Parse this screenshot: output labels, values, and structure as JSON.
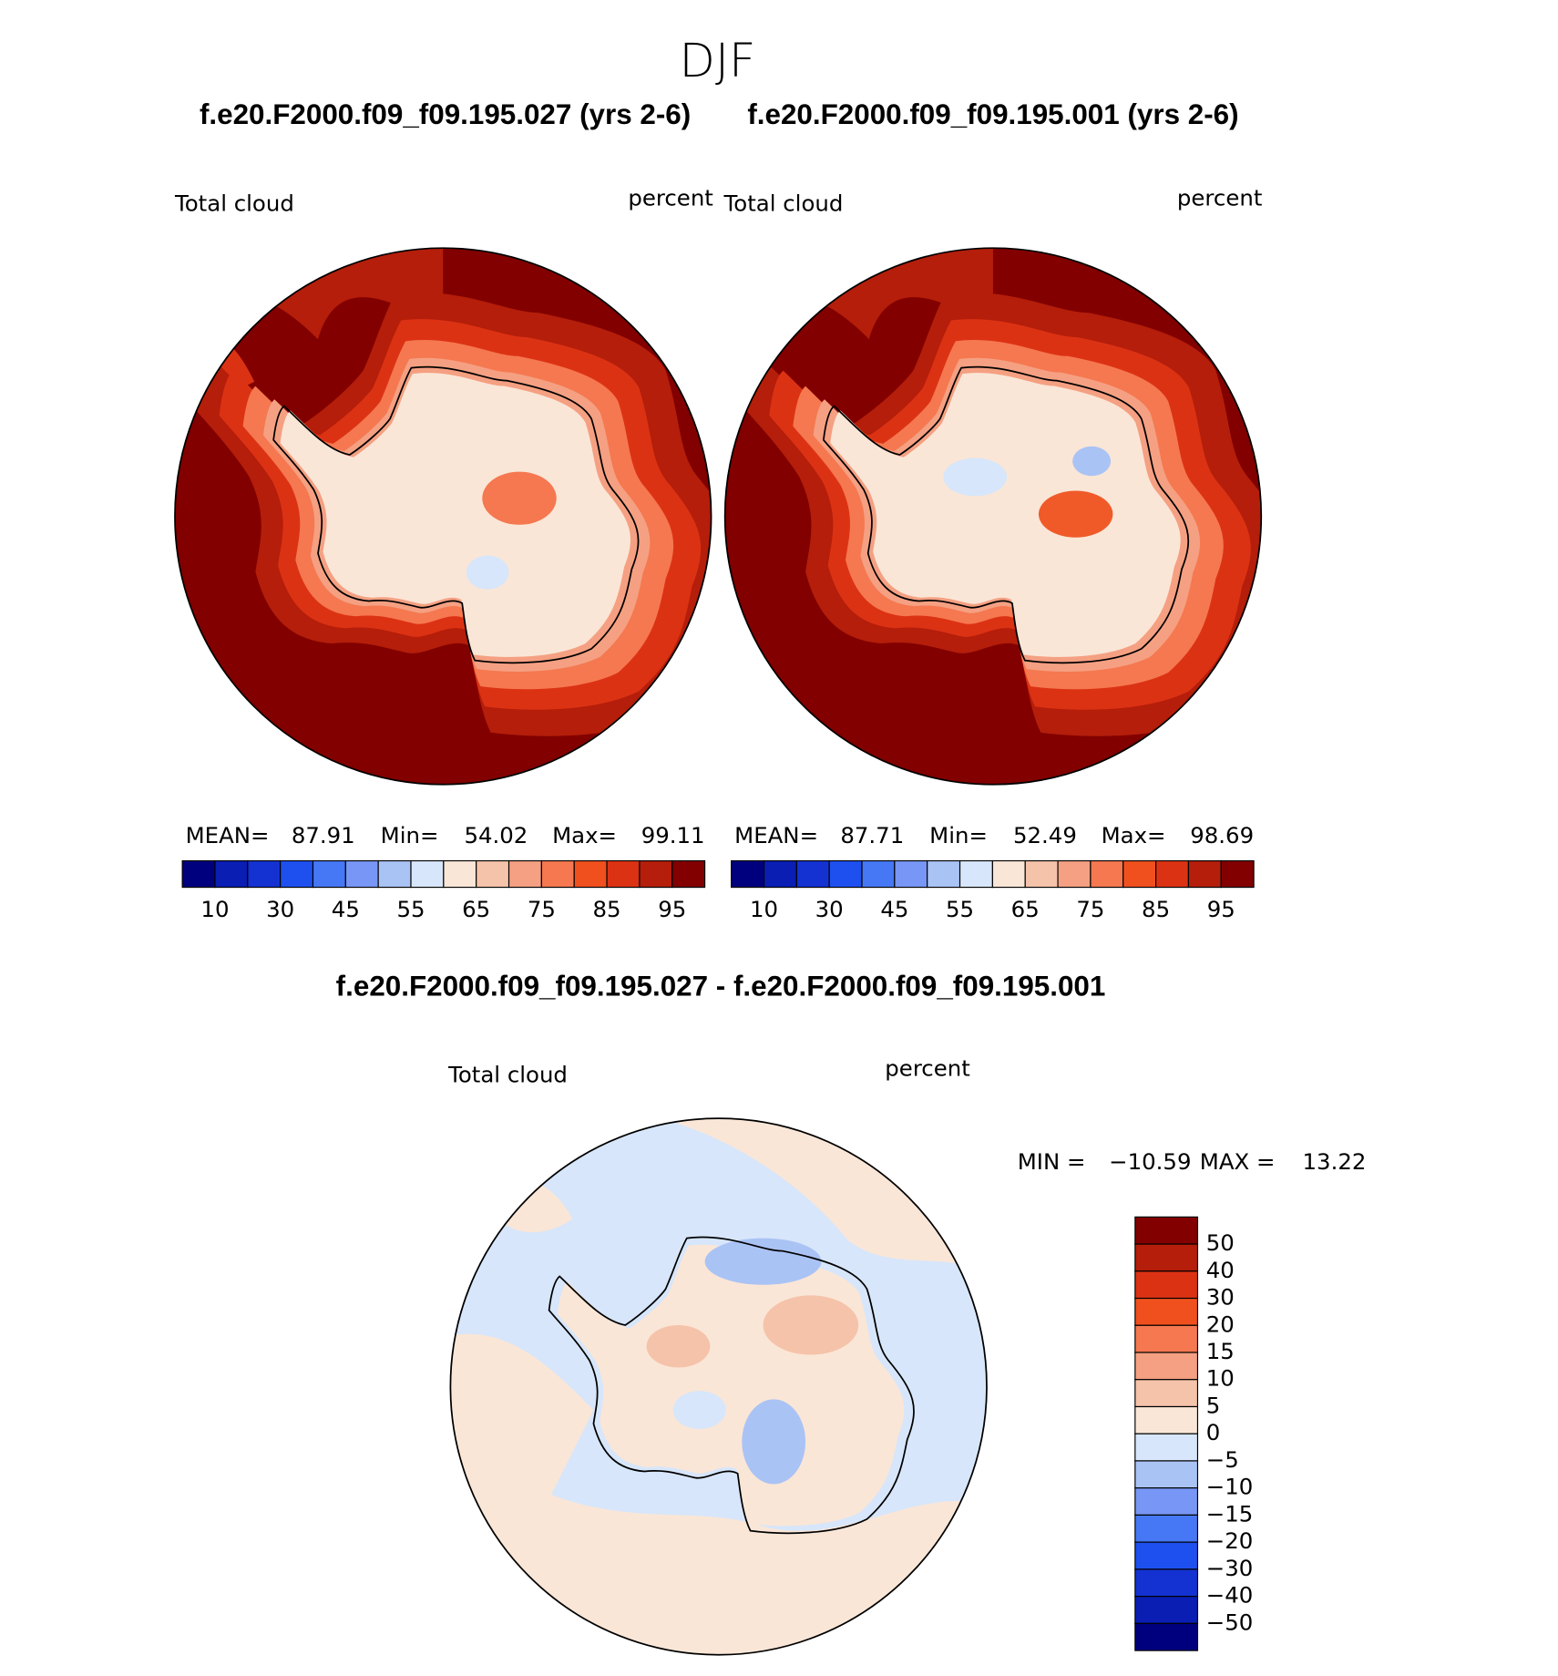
{
  "title": "DJF",
  "top_panels": [
    {
      "case": "f.e20.F2000.f09_f09.195.027 (yrs 2-6)",
      "variable": "Total cloud",
      "units": "percent",
      "stats": [
        {
          "label": "MEAN=",
          "value": "87.91"
        },
        {
          "label": "Min=",
          "value": "54.02"
        },
        {
          "label": "Max=",
          "value": "99.11"
        }
      ]
    },
    {
      "case": "f.e20.F2000.f09_f09.195.001 (yrs 2-6)",
      "variable": "Total cloud",
      "units": "percent",
      "stats": [
        {
          "label": "MEAN=",
          "value": "87.71"
        },
        {
          "label": "Min=",
          "value": "52.49"
        },
        {
          "label": "Max=",
          "value": "98.69"
        }
      ]
    }
  ],
  "top_colorbar": {
    "colors": [
      "#00007f",
      "#0a1eb4",
      "#1432d2",
      "#1e50f0",
      "#4678f5",
      "#7896f5",
      "#aac3f5",
      "#d7e6fa",
      "#fae6d7",
      "#f5c3aa",
      "#f5a082",
      "#f57850",
      "#f0501e",
      "#dc3214",
      "#b41e0a",
      "#820000"
    ],
    "labels": [
      "10",
      "30",
      "45",
      "55",
      "65",
      "75",
      "85",
      "95"
    ]
  },
  "difference": {
    "title": "f.e20.F2000.f09_f09.195.027 - f.e20.F2000.f09_f09.195.001",
    "variable": "Total cloud",
    "units": "percent",
    "stats": [
      {
        "label": "MIN =",
        "value": "−10.59"
      },
      {
        "label": "MAX =",
        "value": "13.22"
      }
    ],
    "colorbar": {
      "colors": [
        "#820000",
        "#b41e0a",
        "#dc3214",
        "#f0501e",
        "#f57850",
        "#f5a082",
        "#f5c3aa",
        "#fae6d7",
        "#d7e6fa",
        "#aac3f5",
        "#7896f5",
        "#4678f5",
        "#1e50f0",
        "#1432d2",
        "#0a1eb4",
        "#00007f"
      ],
      "labels": [
        "50",
        "40",
        "30",
        "20",
        "15",
        "10",
        "5",
        "0",
        "−5",
        "−10",
        "−15",
        "−20",
        "−30",
        "−40",
        "−50"
      ]
    }
  }
}
